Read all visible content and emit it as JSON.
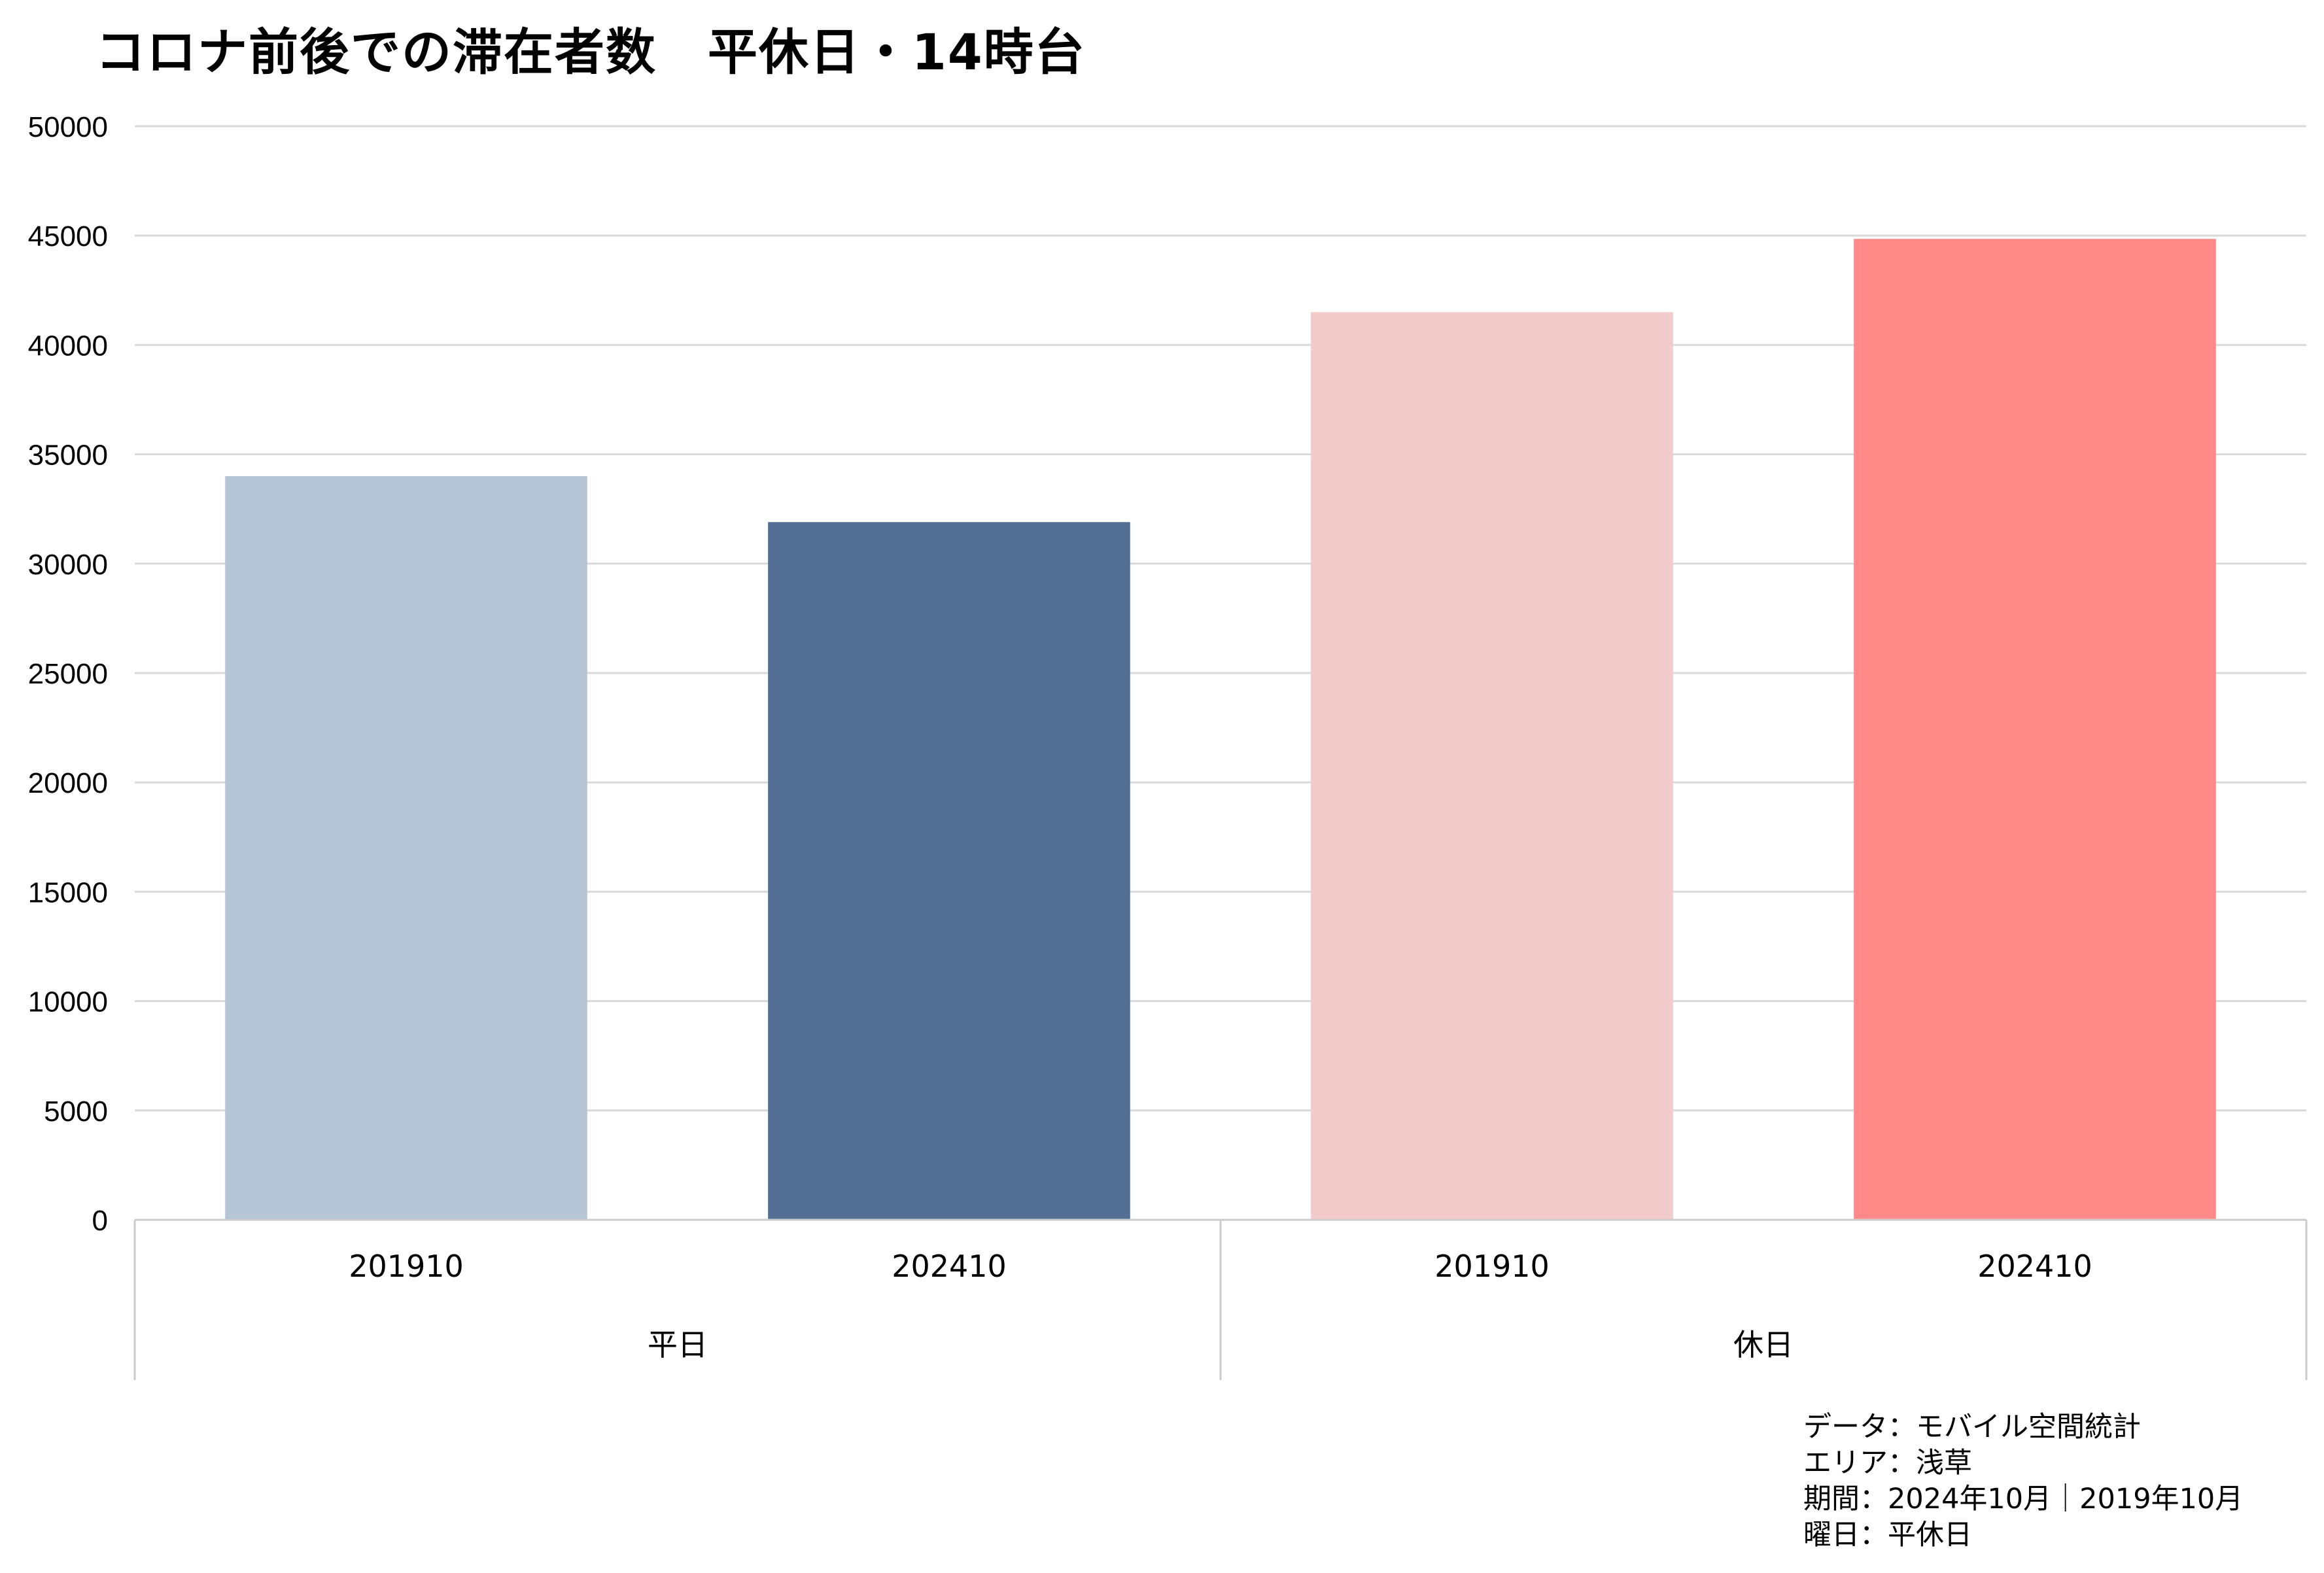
{
  "chart_data": {
    "type": "bar",
    "title": "コロナ前後での滞在者数　平休日・14時台",
    "groups": [
      {
        "label": "平日",
        "categories": [
          "201910",
          "202410"
        ],
        "values": [
          34000,
          31900
        ],
        "colors": [
          "#b6c5d6",
          "#526f93"
        ]
      },
      {
        "label": "休日",
        "categories": [
          "201910",
          "202410"
        ],
        "values": [
          41500,
          44850
        ],
        "colors": [
          "#f3cbcb",
          "#ff8a88"
        ]
      }
    ],
    "ylim": [
      0,
      50000
    ],
    "yticks": [
      0,
      5000,
      10000,
      15000,
      20000,
      25000,
      30000,
      35000,
      40000,
      45000,
      50000
    ],
    "grid": true,
    "xlabel": "",
    "ylabel": ""
  },
  "notes": [
    "データ：モバイル空間統計",
    "エリア：浅草",
    "期間：2024年10月｜2019年10月",
    "曜日：平休日"
  ],
  "colors": {
    "grid": "#d9d9d9",
    "axis": "#cccccc"
  }
}
